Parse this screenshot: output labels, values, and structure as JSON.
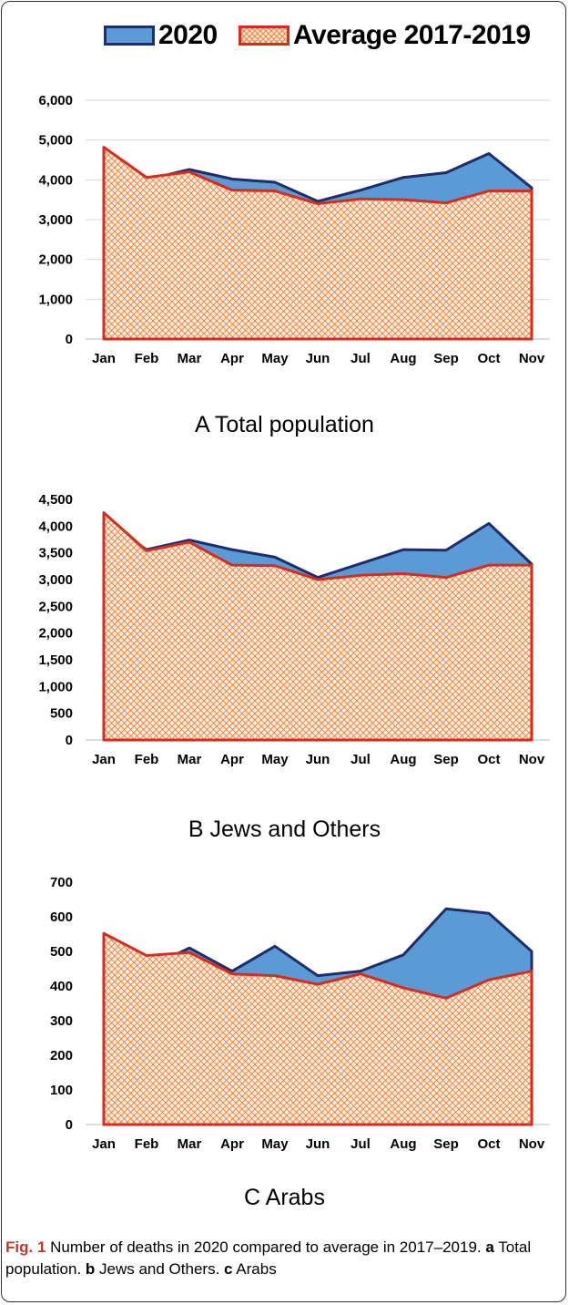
{
  "legend": {
    "series_2020": "2020",
    "series_avg": "Average 2017-2019"
  },
  "colors": {
    "fill_2020": "#5b9bd5",
    "line_2020": "#1f2d6b",
    "fill_avg": "#f4b183",
    "hatch_avg": "#ed7d31",
    "line_avg": "#d62d20",
    "grid": "#d9d9d9"
  },
  "chart_data": [
    {
      "type": "area",
      "title": "A Total population",
      "categories": [
        "Jan",
        "Feb",
        "Mar",
        "Apr",
        "May",
        "Jun",
        "Jul",
        "Aug",
        "Sep",
        "Oct",
        "Nov"
      ],
      "ylim": [
        0,
        6000
      ],
      "yticks": [
        "0",
        "1,000",
        "2,000",
        "3,000",
        "4,000",
        "5,000",
        "6,000"
      ],
      "ytick_values": [
        0,
        1000,
        2000,
        3000,
        4000,
        5000,
        6000
      ],
      "grid": true,
      "legend_position": "top",
      "series": [
        {
          "name": "2020",
          "values": [
            4640,
            4000,
            4260,
            4020,
            3940,
            3460,
            3740,
            4060,
            4180,
            4660,
            3800
          ]
        },
        {
          "name": "Average 2017-2019",
          "values": [
            4820,
            4060,
            4200,
            3740,
            3720,
            3400,
            3520,
            3500,
            3420,
            3720,
            3720
          ]
        }
      ]
    },
    {
      "type": "area",
      "title": "B Jews and Others",
      "categories": [
        "Jan",
        "Feb",
        "Mar",
        "Apr",
        "May",
        "Jun",
        "Jul",
        "Aug",
        "Sep",
        "Oct",
        "Nov"
      ],
      "ylim": [
        0,
        4500
      ],
      "yticks": [
        "0",
        "500",
        "1,000",
        "1,500",
        "2,000",
        "2,500",
        "3,000",
        "3,500",
        "4,000",
        "4,500"
      ],
      "ytick_values": [
        0,
        500,
        1000,
        1500,
        2000,
        2500,
        3000,
        3500,
        4000,
        4500
      ],
      "grid": false,
      "legend_position": "top",
      "series": [
        {
          "name": "2020",
          "values": [
            4100,
            3560,
            3740,
            3560,
            3420,
            3040,
            3300,
            3560,
            3550,
            4050,
            3290
          ]
        },
        {
          "name": "Average 2017-2019",
          "values": [
            4250,
            3540,
            3700,
            3270,
            3260,
            3000,
            3080,
            3110,
            3040,
            3270,
            3270
          ]
        }
      ]
    },
    {
      "type": "area",
      "title": "C Arabs",
      "categories": [
        "Jan",
        "Feb",
        "Mar",
        "Apr",
        "May",
        "Jun",
        "Jul",
        "Aug",
        "Sep",
        "Oct",
        "Nov"
      ],
      "ylim": [
        0,
        700
      ],
      "yticks": [
        "0",
        "100",
        "200",
        "300",
        "400",
        "500",
        "600",
        "700"
      ],
      "ytick_values": [
        0,
        100,
        200,
        300,
        400,
        500,
        600,
        700
      ],
      "grid": false,
      "legend_position": "top",
      "series": [
        {
          "name": "2020",
          "values": [
            535,
            450,
            510,
            443,
            515,
            430,
            443,
            490,
            623,
            610,
            500
          ]
        },
        {
          "name": "Average 2017-2019",
          "values": [
            552,
            488,
            497,
            435,
            430,
            405,
            435,
            395,
            365,
            418,
            443
          ]
        }
      ]
    }
  ],
  "figure_caption": {
    "label": "Fig. 1",
    "text": " Number of deaths in 2020 compared to average in 2017–2019. ",
    "a": "a",
    "a_text": " Total population. ",
    "b": "b",
    "b_text": " Jews and Others. ",
    "c": "c",
    "c_text": " Arabs"
  }
}
